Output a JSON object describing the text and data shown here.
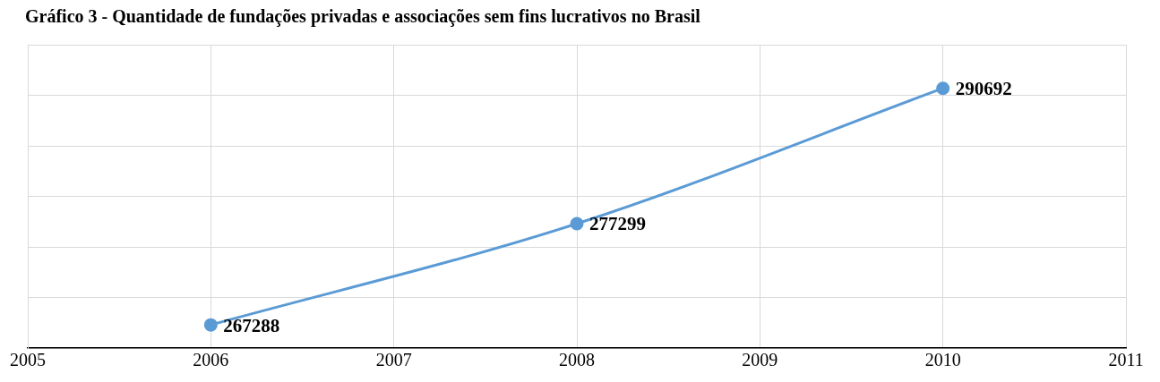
{
  "chart_data": {
    "type": "line",
    "title": "Gráfico 3 - Quantidade de fundações privadas e associações sem fins lucrativos no Brasil",
    "x": [
      2006,
      2008,
      2010
    ],
    "series": [
      {
        "color": "#5b9bd5",
        "values": [
          267288,
          277299,
          290692
        ]
      }
    ],
    "xlim": [
      2005,
      2011
    ],
    "xticks": [
      2005,
      2006,
      2007,
      2008,
      2009,
      2010,
      2011
    ],
    "ylim": [
      265000,
      295000
    ],
    "yticks": [
      {
        "value": 265000,
        "label": null
      },
      {
        "value": 270000,
        "label": null
      },
      {
        "value": 275000,
        "label": null
      },
      {
        "value": 280000,
        "label": null
      },
      {
        "value": 285000,
        "label": null
      },
      {
        "value": 290000,
        "label": null
      },
      {
        "value": 295000,
        "label": null
      }
    ],
    "tick_labels": "x",
    "grid": true,
    "legend": false,
    "marker": "circle",
    "line_style": "solid",
    "data_labels": true
  }
}
